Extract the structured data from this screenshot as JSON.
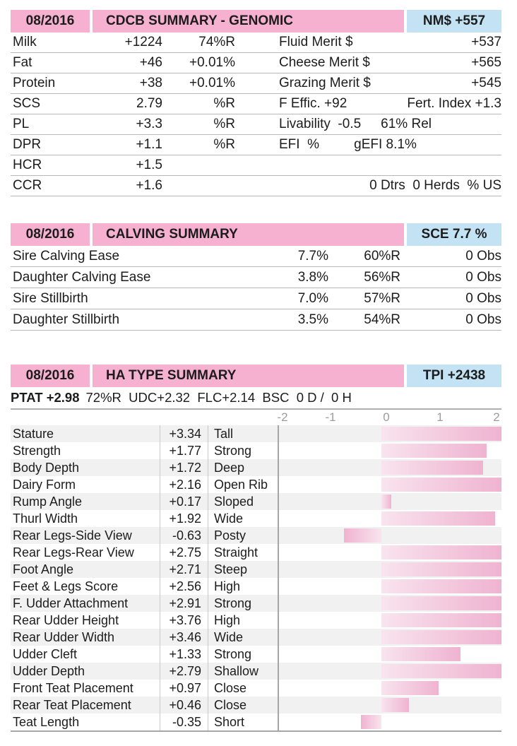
{
  "colors": {
    "header_pink": "#f6b1d1",
    "badge_blue": "#c3e2f4",
    "bar_light": "#f8e4ee",
    "bar_dark": "#efb3d0",
    "stripe": "#f1f1f1"
  },
  "genomic": {
    "date": "08/2016",
    "title": "CDCB SUMMARY - GENOMIC",
    "badge": "NM$ +557",
    "rows": [
      {
        "label": "Milk",
        "value": "+1224",
        "pct": "74%R",
        "r_left": "Fluid Merit $",
        "r_mid": "",
        "r_right": "+537"
      },
      {
        "label": "Fat",
        "value": "+46",
        "pct": "+0.01%",
        "r_left": "Cheese Merit $",
        "r_mid": "",
        "r_right": "+565"
      },
      {
        "label": "Protein",
        "value": "+38",
        "pct": "+0.01%",
        "r_left": "Grazing Merit $",
        "r_mid": "",
        "r_right": "+545"
      },
      {
        "label": "SCS",
        "value": "2.79",
        "pct": "%R",
        "r_left": "F Effic. +92",
        "r_mid": "",
        "r_right": "Fert. Index +1.3"
      },
      {
        "label": "PL",
        "value": "+3.3",
        "pct": "%R",
        "r_left": "Livability  -0.5",
        "r_mid": "61% Rel",
        "r_right": ""
      },
      {
        "label": "DPR",
        "value": "+1.1",
        "pct": "%R",
        "r_left": "EFI  %",
        "r_mid": "    gEFI 8.1%",
        "r_right": ""
      },
      {
        "label": "HCR",
        "value": "+1.5",
        "pct": "",
        "r_left": "",
        "r_mid": "",
        "r_right": ""
      },
      {
        "label": "CCR",
        "value": "+1.6",
        "pct": "",
        "r_left": "",
        "r_mid": "",
        "r_right": "0 Dtrs  0 Herds  % US"
      }
    ]
  },
  "calving": {
    "date": "08/2016",
    "title": "CALVING SUMMARY",
    "badge": "SCE 7.7 %",
    "rows": [
      {
        "label": "Sire Calving Ease",
        "value": "7.7%",
        "rel": "60%R",
        "obs": "0 Obs"
      },
      {
        "label": "Daughter Calving Ease",
        "value": "3.8%",
        "rel": "56%R",
        "obs": "0 Obs"
      },
      {
        "label": "Sire Stillbirth",
        "value": "7.0%",
        "rel": "57%R",
        "obs": "0 Obs"
      },
      {
        "label": "Daughter Stillbirth",
        "value": "3.5%",
        "rel": "54%R",
        "obs": "0 Obs"
      }
    ]
  },
  "type": {
    "date": "08/2016",
    "title": "HA TYPE SUMMARY",
    "badge": "TPI +2438",
    "ptat_bold": "PTAT +2.98",
    "ptat_rest": "72%R  UDC+2.32  FLC+2.14  BSC  0 D /  0 H",
    "ticks": [
      "-2",
      "-1",
      "0",
      "1",
      "2"
    ]
  },
  "chart_data": {
    "type": "bar",
    "orientation": "horizontal",
    "xlim": [
      -2,
      2
    ],
    "tick_values": [
      -2,
      -1,
      0,
      1,
      2
    ],
    "grid": "left-edge-and-bottom",
    "bars_clipped_at": 2,
    "rows": [
      {
        "label": "Stature",
        "value": 3.34,
        "display": "+3.34",
        "descriptor": "Tall"
      },
      {
        "label": "Strength",
        "value": 1.77,
        "display": "+1.77",
        "descriptor": "Strong"
      },
      {
        "label": "Body Depth",
        "value": 1.72,
        "display": "+1.72",
        "descriptor": "Deep"
      },
      {
        "label": "Dairy Form",
        "value": 2.16,
        "display": "+2.16",
        "descriptor": "Open Rib"
      },
      {
        "label": "Rump Angle",
        "value": 0.17,
        "display": "+0.17",
        "descriptor": "Sloped"
      },
      {
        "label": "Thurl Width",
        "value": 1.92,
        "display": "+1.92",
        "descriptor": "Wide"
      },
      {
        "label": "Rear Legs-Side View",
        "value": -0.63,
        "display": "-0.63",
        "descriptor": "Posty"
      },
      {
        "label": "Rear Legs-Rear View",
        "value": 2.75,
        "display": "+2.75",
        "descriptor": "Straight"
      },
      {
        "label": "Foot Angle",
        "value": 2.71,
        "display": "+2.71",
        "descriptor": "Steep"
      },
      {
        "label": "Feet & Legs Score",
        "value": 2.56,
        "display": "+2.56",
        "descriptor": "High"
      },
      {
        "label": "F. Udder Attachment",
        "value": 2.91,
        "display": "+2.91",
        "descriptor": "Strong"
      },
      {
        "label": "Rear Udder Height",
        "value": 3.76,
        "display": "+3.76",
        "descriptor": "High"
      },
      {
        "label": "Rear Udder Width",
        "value": 3.46,
        "display": "+3.46",
        "descriptor": "Wide"
      },
      {
        "label": "Udder Cleft",
        "value": 1.33,
        "display": "+1.33",
        "descriptor": "Strong"
      },
      {
        "label": "Udder Depth",
        "value": 2.79,
        "display": "+2.79",
        "descriptor": "Shallow"
      },
      {
        "label": "Front Teat Placement",
        "value": 0.97,
        "display": "+0.97",
        "descriptor": "Close"
      },
      {
        "label": "Rear Teat Placement",
        "value": 0.46,
        "display": "+0.46",
        "descriptor": "Close"
      },
      {
        "label": "Teat Length",
        "value": -0.35,
        "display": "-0.35",
        "descriptor": "Short"
      }
    ]
  }
}
